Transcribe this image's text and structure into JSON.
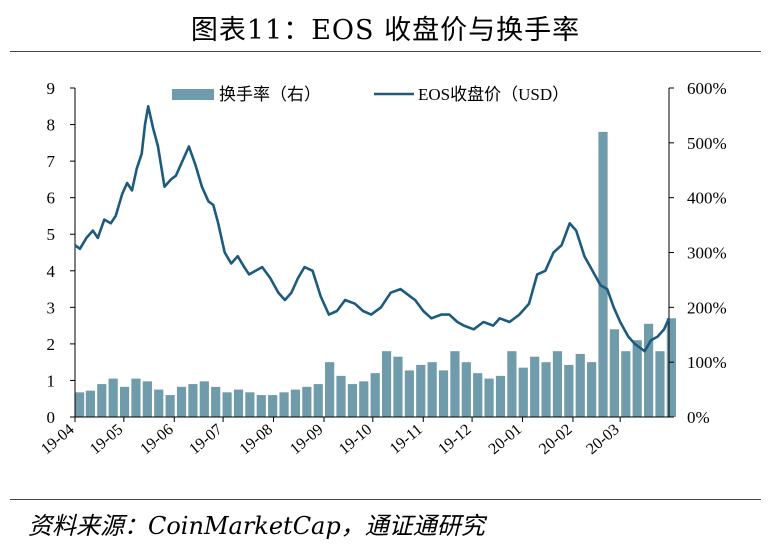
{
  "page": {
    "title": "图表11：EOS 收盘价与换手率",
    "source": "资料来源：CoinMarketCap，通证通研究"
  },
  "chart_data": {
    "type": "bar+line",
    "title": "图表11：EOS 收盘价与换手率",
    "x_ticks": [
      "19-04",
      "19-05",
      "19-06",
      "19-07",
      "19-08",
      "19-09",
      "19-10",
      "19-11",
      "19-12",
      "20-01",
      "20-02",
      "20-03"
    ],
    "y_left": {
      "range": [
        0,
        9
      ],
      "ticks": [
        "0",
        "1",
        "2",
        "3",
        "4",
        "5",
        "6",
        "7",
        "8",
        "9"
      ]
    },
    "y_right": {
      "range": [
        0,
        600
      ],
      "ticks": [
        "0%",
        "100%",
        "200%",
        "300%",
        "400%",
        "500%",
        "600%"
      ]
    },
    "legend": {
      "placement": "top",
      "entries": [
        "换手率（右）",
        "EOS收盘价（USD）"
      ]
    },
    "colors": {
      "bar": "#6f9bab",
      "line": "#1d5b7e"
    },
    "series": [
      {
        "name": "EOS收盘价（USD）",
        "axis": "left",
        "kind": "line",
        "x": [
          "2019-04-01",
          "2019-04-04",
          "2019-04-08",
          "2019-04-12",
          "2019-04-15",
          "2019-04-19",
          "2019-04-23",
          "2019-04-26",
          "2019-04-30",
          "2019-05-03",
          "2019-05-06",
          "2019-05-09",
          "2019-05-12",
          "2019-05-14",
          "2019-05-16",
          "2019-05-19",
          "2019-05-22",
          "2019-05-26",
          "2019-05-30",
          "2019-06-02",
          "2019-06-06",
          "2019-06-10",
          "2019-06-14",
          "2019-06-18",
          "2019-06-22",
          "2019-06-25",
          "2019-06-28",
          "2019-07-02",
          "2019-07-06",
          "2019-07-10",
          "2019-07-14",
          "2019-07-17",
          "2019-07-21",
          "2019-07-25",
          "2019-07-30",
          "2019-08-04",
          "2019-08-08",
          "2019-08-12",
          "2019-08-16",
          "2019-08-20",
          "2019-08-25",
          "2019-08-30",
          "2019-09-04",
          "2019-09-09",
          "2019-09-14",
          "2019-09-20",
          "2019-09-25",
          "2019-09-30",
          "2019-10-06",
          "2019-10-12",
          "2019-10-18",
          "2019-10-24",
          "2019-10-27",
          "2019-11-01",
          "2019-11-06",
          "2019-11-12",
          "2019-11-17",
          "2019-11-22",
          "2019-11-26",
          "2019-12-02",
          "2019-12-08",
          "2019-12-14",
          "2019-12-18",
          "2019-12-24",
          "2019-12-30",
          "2020-01-05",
          "2020-01-10",
          "2020-01-15",
          "2020-01-20",
          "2020-01-25",
          "2020-01-30",
          "2020-02-03",
          "2020-02-08",
          "2020-02-13",
          "2020-02-18",
          "2020-02-22",
          "2020-02-26",
          "2020-03-01",
          "2020-03-06",
          "2020-03-10",
          "2020-03-13",
          "2020-03-16",
          "2020-03-20",
          "2020-03-24",
          "2020-03-28",
          "2020-03-31"
        ],
        "values": [
          4.7,
          4.6,
          4.9,
          5.1,
          4.9,
          5.4,
          5.3,
          5.5,
          6.1,
          6.4,
          6.2,
          6.8,
          7.2,
          8.0,
          8.5,
          7.9,
          7.4,
          6.3,
          6.5,
          6.6,
          7.0,
          7.4,
          6.9,
          6.3,
          5.9,
          5.8,
          5.3,
          4.5,
          4.2,
          4.4,
          4.1,
          3.9,
          4.0,
          4.1,
          3.8,
          3.4,
          3.2,
          3.4,
          3.8,
          4.1,
          4.0,
          3.3,
          2.8,
          2.9,
          3.2,
          3.1,
          2.9,
          2.8,
          3.0,
          3.4,
          3.5,
          3.3,
          3.2,
          2.9,
          2.7,
          2.8,
          2.8,
          2.6,
          2.5,
          2.4,
          2.6,
          2.5,
          2.7,
          2.6,
          2.8,
          3.1,
          3.9,
          4.0,
          4.5,
          4.7,
          5.3,
          5.1,
          4.4,
          4.0,
          3.6,
          3.5,
          3.0,
          2.6,
          2.2,
          2.0,
          1.9,
          1.8,
          2.1,
          2.2,
          2.4,
          2.7
        ]
      },
      {
        "name": "换手率（右）",
        "axis": "right",
        "kind": "bar",
        "x": [
          "2019-04-01",
          "2019-04-08",
          "2019-04-15",
          "2019-04-22",
          "2019-04-29",
          "2019-05-06",
          "2019-05-13",
          "2019-05-20",
          "2019-05-27",
          "2019-06-03",
          "2019-06-10",
          "2019-06-17",
          "2019-06-24",
          "2019-07-01",
          "2019-07-08",
          "2019-07-15",
          "2019-07-22",
          "2019-07-29",
          "2019-08-05",
          "2019-08-12",
          "2019-08-19",
          "2019-08-26",
          "2019-09-02",
          "2019-09-09",
          "2019-09-16",
          "2019-09-23",
          "2019-09-30",
          "2019-10-07",
          "2019-10-14",
          "2019-10-21",
          "2019-10-28",
          "2019-11-04",
          "2019-11-11",
          "2019-11-18",
          "2019-11-25",
          "2019-12-02",
          "2019-12-09",
          "2019-12-16",
          "2019-12-23",
          "2019-12-30",
          "2020-01-06",
          "2020-01-13",
          "2020-01-20",
          "2020-01-27",
          "2020-02-03",
          "2020-02-10",
          "2020-02-17",
          "2020-02-24",
          "2020-03-02",
          "2020-03-09",
          "2020-03-16",
          "2020-03-23",
          "2020-03-30"
        ],
        "values": [
          45,
          48,
          60,
          70,
          55,
          70,
          65,
          50,
          40,
          55,
          60,
          65,
          55,
          45,
          50,
          45,
          40,
          40,
          45,
          50,
          55,
          60,
          100,
          75,
          60,
          65,
          80,
          120,
          110,
          85,
          95,
          100,
          85,
          120,
          100,
          80,
          70,
          75,
          120,
          90,
          110,
          100,
          120,
          95,
          115,
          100,
          520,
          160,
          120,
          140,
          170,
          120,
          180
        ]
      }
    ]
  }
}
